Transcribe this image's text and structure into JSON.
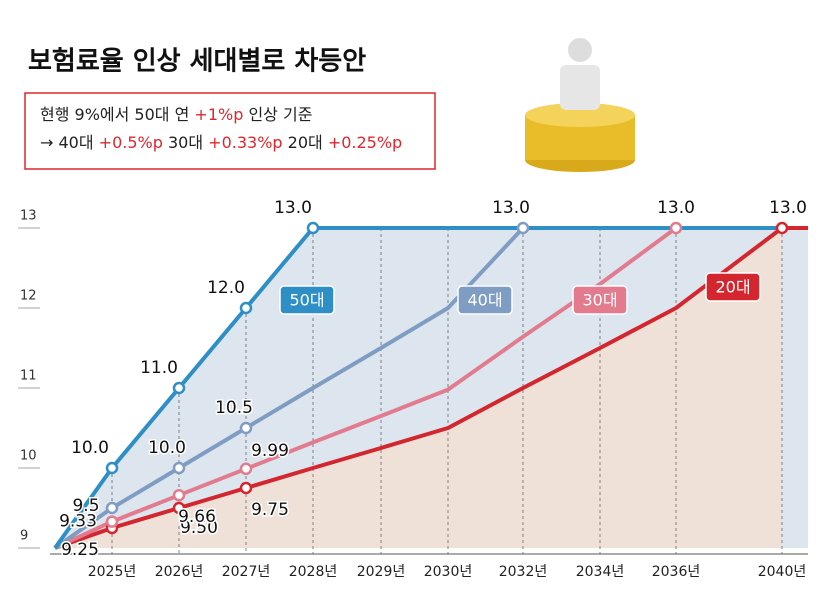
{
  "chart_data": {
    "type": "line",
    "title": "보험료율 인상 세대별로 차등안",
    "subtitle_lines": [
      [
        {
          "text": "현행 9%에서 50대 연 ",
          "color": "#222222"
        },
        {
          "text": "+1%p",
          "color": "#e0262c"
        },
        {
          "text": " 인상 기준",
          "color": "#222222"
        }
      ],
      [
        {
          "text": "→ 40대 ",
          "color": "#222222"
        },
        {
          "text": "+0.5%p",
          "color": "#e0262c"
        },
        {
          "text": " 30대 ",
          "color": "#222222"
        },
        {
          "text": "+0.33%p",
          "color": "#e0262c"
        },
        {
          "text": " 20대 ",
          "color": "#222222"
        },
        {
          "text": "+0.25%p",
          "color": "#e0262c"
        }
      ]
    ],
    "categories": [
      null,
      "2025년",
      "2026년",
      "2027년",
      "2028년",
      "2029년",
      "2030년",
      "2032년",
      "2034년",
      "2036년",
      "2040년"
    ],
    "ylim": [
      9,
      13
    ],
    "yticks": [
      9,
      10,
      11,
      12,
      13
    ],
    "series": [
      {
        "name": "50대",
        "color": "#2e8ec6",
        "values": [
          9,
          10,
          11,
          12,
          13,
          13,
          13,
          13,
          13,
          13,
          13
        ],
        "value_labels": [
          null,
          "10.0",
          "11.0",
          "12.0",
          "13.0",
          null,
          null,
          null,
          null,
          null,
          null
        ]
      },
      {
        "name": "40대",
        "color": "#7f9dc3",
        "values": [
          9,
          9.5,
          10,
          10.5,
          11,
          11.5,
          12,
          13,
          13,
          13,
          13
        ],
        "value_labels": [
          null,
          "9.5",
          "10.0",
          "10.5",
          null,
          null,
          null,
          "13.0",
          null,
          null,
          null
        ]
      },
      {
        "name": "30대",
        "color": "#e27b8e",
        "values": [
          9,
          9.33,
          9.66,
          9.99,
          10.32,
          10.65,
          10.98,
          11.64,
          12.3,
          13,
          13
        ],
        "value_labels": [
          null,
          "9.33",
          "9.66",
          "9.99",
          null,
          null,
          null,
          null,
          null,
          "13.0",
          null
        ]
      },
      {
        "name": "20대",
        "color": "#d4262e",
        "values": [
          9,
          9.25,
          9.5,
          9.75,
          10,
          10.25,
          10.5,
          11,
          11.5,
          12,
          13
        ],
        "value_labels": [
          null,
          "9.25",
          "9.50",
          "9.75",
          null,
          null,
          null,
          null,
          null,
          null,
          "13.0"
        ]
      }
    ]
  }
}
